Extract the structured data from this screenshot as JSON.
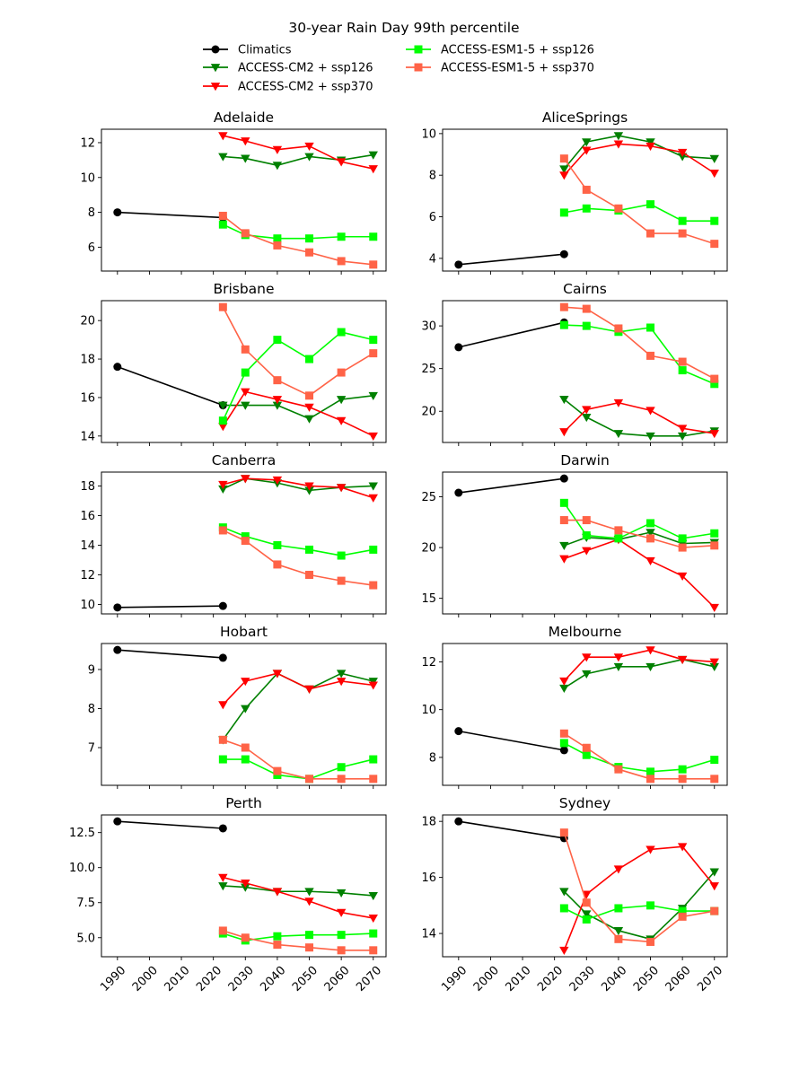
{
  "chart_data": {
    "type": "line",
    "title": "30-year Rain Day 99th percentile",
    "legend": {
      "placement": "top-center",
      "entries": [
        {
          "name": "Climatics",
          "color": "#000000",
          "marker": "circle"
        },
        {
          "name": "ACCESS-CM2 + ssp126",
          "color": "#008000",
          "marker": "triangle-down"
        },
        {
          "name": "ACCESS-CM2 + ssp370",
          "color": "#ff0000",
          "marker": "triangle-down"
        },
        {
          "name": "ACCESS-ESM1-5 + ssp126",
          "color": "#00ff00",
          "marker": "square"
        },
        {
          "name": "ACCESS-ESM1-5 + ssp370",
          "color": "#ff6347",
          "marker": "square"
        }
      ]
    },
    "xlim": [
      1985,
      2074
    ],
    "xticks": [
      1990,
      2000,
      2010,
      2020,
      2030,
      2040,
      2050,
      2060,
      2070
    ],
    "climatics_x": [
      1990,
      2023
    ],
    "model_x": [
      2023,
      2030,
      2040,
      2050,
      2060,
      2070
    ],
    "grid": false,
    "panels": [
      {
        "title": "Adelaide",
        "yticks": [
          6,
          8,
          10,
          12
        ],
        "series": {
          "Climatics": [
            8.0,
            7.7
          ],
          "ACCESS-CM2 + ssp126": [
            11.2,
            11.1,
            10.7,
            11.2,
            11.0,
            11.3
          ],
          "ACCESS-CM2 + ssp370": [
            12.4,
            12.1,
            11.6,
            11.8,
            10.9,
            10.5
          ],
          "ACCESS-ESM1-5 + ssp126": [
            7.3,
            6.7,
            6.5,
            6.5,
            6.6,
            6.6
          ],
          "ACCESS-ESM1-5 + ssp370": [
            7.8,
            6.8,
            6.1,
            5.7,
            5.2,
            5.0
          ]
        }
      },
      {
        "title": "AliceSprings",
        "yticks": [
          4,
          6,
          8,
          10
        ],
        "series": {
          "Climatics": [
            3.7,
            4.2
          ],
          "ACCESS-CM2 + ssp126": [
            8.3,
            9.6,
            9.9,
            9.6,
            8.9,
            8.8
          ],
          "ACCESS-CM2 + ssp370": [
            8.0,
            9.2,
            9.5,
            9.4,
            9.1,
            8.1
          ],
          "ACCESS-ESM1-5 + ssp126": [
            6.2,
            6.4,
            6.3,
            6.6,
            5.8,
            5.8
          ],
          "ACCESS-ESM1-5 + ssp370": [
            8.8,
            7.3,
            6.4,
            5.2,
            5.2,
            4.7
          ]
        }
      },
      {
        "title": "Brisbane",
        "yticks": [
          14,
          16,
          18,
          20
        ],
        "series": {
          "Climatics": [
            17.6,
            15.6
          ],
          "ACCESS-CM2 + ssp126": [
            15.6,
            15.6,
            15.6,
            14.9,
            15.9,
            16.1
          ],
          "ACCESS-CM2 + ssp370": [
            14.5,
            16.3,
            15.9,
            15.5,
            14.8,
            14.0
          ],
          "ACCESS-ESM1-5 + ssp126": [
            14.8,
            17.3,
            19.0,
            18.0,
            19.4,
            19.0
          ],
          "ACCESS-ESM1-5 + ssp370": [
            20.7,
            18.5,
            16.9,
            16.1,
            17.3,
            18.3
          ]
        }
      },
      {
        "title": "Cairns",
        "yticks": [
          20,
          25,
          30
        ],
        "series": {
          "Climatics": [
            27.5,
            30.4
          ],
          "ACCESS-CM2 + ssp126": [
            21.4,
            19.3,
            17.4,
            17.1,
            17.1,
            17.7
          ],
          "ACCESS-CM2 + ssp370": [
            17.6,
            20.2,
            21.0,
            20.1,
            18.0,
            17.4
          ],
          "ACCESS-ESM1-5 + ssp126": [
            30.1,
            30.0,
            29.3,
            29.8,
            24.8,
            23.2
          ],
          "ACCESS-ESM1-5 + ssp370": [
            32.2,
            32.0,
            29.7,
            26.5,
            25.8,
            23.8
          ]
        }
      },
      {
        "title": "Canberra",
        "yticks": [
          10,
          12,
          14,
          16,
          18
        ],
        "series": {
          "Climatics": [
            9.8,
            9.9
          ],
          "ACCESS-CM2 + ssp126": [
            17.8,
            18.5,
            18.2,
            17.7,
            17.9,
            18.0
          ],
          "ACCESS-CM2 + ssp370": [
            18.1,
            18.5,
            18.4,
            18.0,
            17.9,
            17.2
          ],
          "ACCESS-ESM1-5 + ssp126": [
            15.2,
            14.6,
            14.0,
            13.7,
            13.3,
            13.7
          ],
          "ACCESS-ESM1-5 + ssp370": [
            15.0,
            14.3,
            12.7,
            12.0,
            11.6,
            11.3
          ]
        }
      },
      {
        "title": "Darwin",
        "yticks": [
          15,
          20,
          25
        ],
        "series": {
          "Climatics": [
            25.4,
            26.8
          ],
          "ACCESS-CM2 + ssp126": [
            20.2,
            21.0,
            20.8,
            21.5,
            20.4,
            20.5
          ],
          "ACCESS-CM2 + ssp370": [
            18.9,
            19.7,
            20.8,
            18.7,
            17.2,
            14.1
          ],
          "ACCESS-ESM1-5 + ssp126": [
            24.4,
            21.2,
            20.9,
            22.4,
            20.9,
            21.4
          ],
          "ACCESS-ESM1-5 + ssp370": [
            22.7,
            22.7,
            21.7,
            20.9,
            20.0,
            20.2
          ]
        }
      },
      {
        "title": "Hobart",
        "yticks": [
          7,
          8,
          9
        ],
        "series": {
          "Climatics": [
            9.5,
            9.3
          ],
          "ACCESS-CM2 + ssp126": [
            7.2,
            8.0,
            8.9,
            8.5,
            8.9,
            8.7
          ],
          "ACCESS-CM2 + ssp370": [
            8.1,
            8.7,
            8.9,
            8.5,
            8.7,
            8.6
          ],
          "ACCESS-ESM1-5 + ssp126": [
            6.7,
            6.7,
            6.3,
            6.2,
            6.5,
            6.7
          ],
          "ACCESS-ESM1-5 + ssp370": [
            7.2,
            7.0,
            6.4,
            6.2,
            6.2,
            6.2
          ]
        }
      },
      {
        "title": "Melbourne",
        "yticks": [
          8,
          10,
          12
        ],
        "series": {
          "Climatics": [
            9.1,
            8.3
          ],
          "ACCESS-CM2 + ssp126": [
            10.9,
            11.5,
            11.8,
            11.8,
            12.1,
            11.8
          ],
          "ACCESS-CM2 + ssp370": [
            11.2,
            12.2,
            12.2,
            12.5,
            12.1,
            12.0
          ],
          "ACCESS-ESM1-5 + ssp126": [
            8.6,
            8.1,
            7.6,
            7.4,
            7.5,
            7.9
          ],
          "ACCESS-ESM1-5 + ssp370": [
            9.0,
            8.4,
            7.5,
            7.1,
            7.1,
            7.1
          ]
        }
      },
      {
        "title": "Perth",
        "yticks": [
          5.0,
          7.5,
          10.0,
          12.5
        ],
        "ytick_labels": [
          "5.0",
          "7.5",
          "10.0",
          "12.5"
        ],
        "series": {
          "Climatics": [
            13.3,
            12.8
          ],
          "ACCESS-CM2 + ssp126": [
            8.7,
            8.6,
            8.3,
            8.3,
            8.2,
            8.0
          ],
          "ACCESS-CM2 + ssp370": [
            9.3,
            8.9,
            8.3,
            7.6,
            6.8,
            6.4
          ],
          "ACCESS-ESM1-5 + ssp126": [
            5.3,
            4.8,
            5.1,
            5.2,
            5.2,
            5.3
          ],
          "ACCESS-ESM1-5 + ssp370": [
            5.5,
            5.0,
            4.5,
            4.3,
            4.1,
            4.1
          ]
        }
      },
      {
        "title": "Sydney",
        "yticks": [
          14,
          16,
          18
        ],
        "series": {
          "Climatics": [
            18.0,
            17.4
          ],
          "ACCESS-CM2 + ssp126": [
            15.5,
            14.7,
            14.1,
            13.8,
            14.9,
            16.2
          ],
          "ACCESS-CM2 + ssp370": [
            13.4,
            15.4,
            16.3,
            17.0,
            17.1,
            15.7
          ],
          "ACCESS-ESM1-5 + ssp126": [
            14.9,
            14.5,
            14.9,
            15.0,
            14.8,
            14.8
          ],
          "ACCESS-ESM1-5 + ssp370": [
            17.6,
            15.1,
            13.8,
            13.7,
            14.6,
            14.8
          ]
        }
      }
    ]
  }
}
